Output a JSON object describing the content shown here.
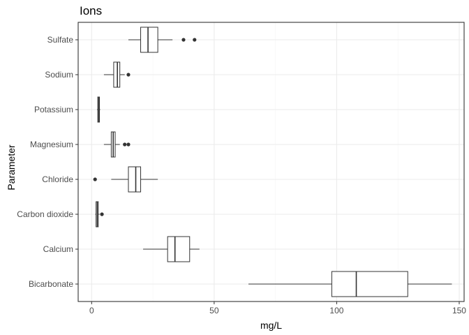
{
  "chart_data": {
    "type": "boxplot",
    "orientation": "horizontal",
    "title": "Ions",
    "xlabel": "mg/L",
    "ylabel": "Parameter",
    "xlim": [
      -5.5,
      152
    ],
    "xticks": [
      0,
      50,
      100,
      150
    ],
    "grid": true,
    "categories": [
      "Bicarbonate",
      "Calcium",
      "Carbon dioxide",
      "Chloride",
      "Magnesium",
      "Potassium",
      "Sodium",
      "Sulfate"
    ],
    "boxes": [
      {
        "category": "Bicarbonate",
        "whisker_low": 64,
        "q1": 98,
        "median": 108,
        "q3": 129,
        "whisker_high": 147,
        "outliers": []
      },
      {
        "category": "Calcium",
        "whisker_low": 21,
        "q1": 31,
        "median": 34,
        "q3": 40,
        "whisker_high": 44,
        "outliers": []
      },
      {
        "category": "Carbon dioxide",
        "whisker_low": 1.5,
        "q1": 1.8,
        "median": 2.3,
        "q3": 2.7,
        "whisker_high": 3.2,
        "outliers": [
          4.2
        ]
      },
      {
        "category": "Chloride",
        "whisker_low": 8,
        "q1": 15,
        "median": 18,
        "q3": 20,
        "whisker_high": 27,
        "outliers": [
          1.4
        ]
      },
      {
        "category": "Magnesium",
        "whisker_low": 5,
        "q1": 8,
        "median": 8.8,
        "q3": 9.6,
        "whisker_high": 11.5,
        "outliers": [
          13.5,
          15
        ]
      },
      {
        "category": "Potassium",
        "whisker_low": 2.2,
        "q1": 2.5,
        "median": 2.9,
        "q3": 3.2,
        "whisker_high": 3.5,
        "outliers": []
      },
      {
        "category": "Sodium",
        "whisker_low": 5,
        "q1": 9,
        "median": 10.5,
        "q3": 11.5,
        "whisker_high": 13.5,
        "outliers": [
          15
        ]
      },
      {
        "category": "Sulfate",
        "whisker_low": 15,
        "q1": 20,
        "median": 23,
        "q3": 27,
        "whisker_high": 33,
        "outliers": [
          37.5,
          42
        ]
      }
    ]
  },
  "colors": {
    "panel_border": "#333333",
    "grid_major": "#ebebeb",
    "grid_minor": "#f5f5f5",
    "box_stroke": "#333333",
    "outlier": "#333333",
    "tick_label": "#4d4d4d"
  }
}
